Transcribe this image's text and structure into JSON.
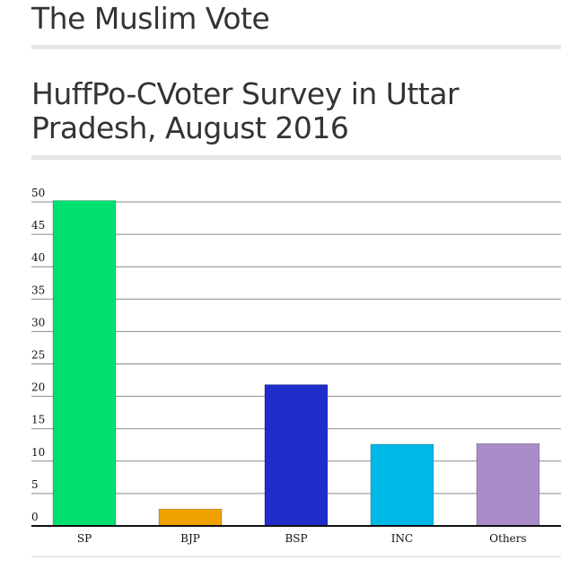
{
  "page": {
    "title": "The Muslim Vote",
    "subtitle": "HuffPo-CVoter Survey in Uttar Pradesh, August 2016"
  },
  "chart_data": {
    "type": "bar",
    "title": "",
    "xlabel": "",
    "ylabel": "",
    "categories": [
      "SP",
      "BJP",
      "BSP",
      "INC",
      "Others"
    ],
    "values": [
      50.2,
      2.6,
      21.8,
      12.6,
      12.7
    ],
    "colors": [
      "#00e070",
      "#efa200",
      "#1f2ecb",
      "#00b8e8",
      "#a98cc8"
    ],
    "ylim": [
      0,
      50
    ],
    "yticks": [
      0,
      5,
      10,
      15,
      20,
      25,
      30,
      35,
      40,
      45,
      50
    ],
    "grid": true,
    "legend": "none"
  }
}
